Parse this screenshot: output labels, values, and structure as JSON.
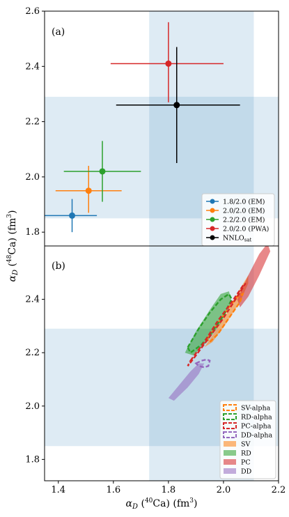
{
  "chart_data": [
    {
      "type": "scatter",
      "panel_label": "(a)",
      "xlim": [
        1.35,
        2.2
      ],
      "ylim": [
        1.75,
        2.6
      ],
      "yticks": [
        "1.8",
        "2.0",
        "2.2",
        "2.4",
        "2.6"
      ],
      "exp_band_x": [
        1.73,
        2.11
      ],
      "exp_band_y": [
        1.85,
        2.29
      ],
      "legend_position": "lower-right",
      "series": [
        {
          "name": "1.8/2.0 (EM)",
          "color": "#1f77b4",
          "x": 1.45,
          "y": 1.86,
          "xerr": [
            1.35,
            1.54
          ],
          "yerr": [
            1.8,
            1.92
          ]
        },
        {
          "name": "2.0/2.0 (EM)",
          "color": "#ff7f0e",
          "x": 1.51,
          "y": 1.95,
          "xerr": [
            1.39,
            1.63
          ],
          "yerr": [
            1.87,
            2.04
          ]
        },
        {
          "name": "2.2/2.0 (EM)",
          "color": "#2ca02c",
          "x": 1.56,
          "y": 2.02,
          "xerr": [
            1.42,
            1.7
          ],
          "yerr": [
            1.91,
            2.13
          ]
        },
        {
          "name": "2.0/2.0 (PWA)",
          "color": "#d62728",
          "x": 1.8,
          "y": 2.41,
          "xerr": [
            1.59,
            2.0
          ],
          "yerr": [
            2.27,
            2.56
          ]
        },
        {
          "name_prefix": "NNLO",
          "name_sub": "sat",
          "color": "#000000",
          "x": 1.83,
          "y": 2.26,
          "xerr": [
            1.61,
            2.06
          ],
          "yerr": [
            2.05,
            2.47
          ]
        }
      ]
    },
    {
      "type": "ellipse-region",
      "panel_label": "(b)",
      "xlim": [
        1.35,
        2.2
      ],
      "ylim": [
        1.72,
        2.6
      ],
      "xticks": [
        "1.4",
        "1.6",
        "1.8",
        "2.0",
        "2.2"
      ],
      "yticks": [
        "1.8",
        "2.0",
        "2.2",
        "2.4"
      ],
      "exp_band_x": [
        1.73,
        2.11
      ],
      "exp_band_y": [
        1.85,
        2.29
      ],
      "legend_position": "lower-right",
      "dashed": [
        {
          "name": "SV-alpha",
          "color": "#ff7f0e",
          "points": [
            [
              1.94,
              2.25
            ],
            [
              1.98,
              2.31
            ],
            [
              2.02,
              2.37
            ],
            [
              2.05,
              2.41
            ],
            [
              2.07,
              2.42
            ],
            [
              2.06,
              2.39
            ],
            [
              2.02,
              2.33
            ],
            [
              1.98,
              2.27
            ],
            [
              1.95,
              2.24
            ],
            [
              1.94,
              2.25
            ]
          ]
        },
        {
          "name": "RD-alpha",
          "color": "#2ca02c",
          "points": [
            [
              1.87,
              2.22
            ],
            [
              1.91,
              2.29
            ],
            [
              1.95,
              2.35
            ],
            [
              1.99,
              2.4
            ],
            [
              2.02,
              2.42
            ],
            [
              2.03,
              2.4
            ],
            [
              2.0,
              2.34
            ],
            [
              1.96,
              2.28
            ],
            [
              1.92,
              2.23
            ],
            [
              1.88,
              2.2
            ],
            [
              1.87,
              2.22
            ]
          ]
        },
        {
          "name": "PC-alpha",
          "color": "#d62728",
          "points": [
            [
              1.88,
              2.17
            ],
            [
              1.93,
              2.24
            ],
            [
              1.98,
              2.32
            ],
            [
              2.03,
              2.39
            ],
            [
              2.07,
              2.45
            ],
            [
              2.08,
              2.46
            ],
            [
              2.05,
              2.41
            ],
            [
              2.0,
              2.33
            ],
            [
              1.95,
              2.26
            ],
            [
              1.9,
              2.19
            ],
            [
              1.87,
              2.15
            ],
            [
              1.88,
              2.17
            ]
          ]
        },
        {
          "name": "DD-alpha",
          "color": "#9467bd",
          "points": [
            [
              1.9,
              2.16
            ],
            [
              1.92,
              2.17
            ],
            [
              1.94,
              2.175
            ],
            [
              1.95,
              2.17
            ],
            [
              1.945,
              2.15
            ],
            [
              1.93,
              2.145
            ],
            [
              1.91,
              2.15
            ],
            [
              1.9,
              2.16
            ]
          ]
        }
      ],
      "filled": [
        {
          "name": "SV",
          "color": "#ff7f0e",
          "points": [
            [
              1.93,
              2.22
            ],
            [
              1.97,
              2.28
            ],
            [
              2.02,
              2.36
            ],
            [
              2.06,
              2.44
            ],
            [
              2.09,
              2.49
            ],
            [
              2.09,
              2.46
            ],
            [
              2.06,
              2.39
            ],
            [
              2.01,
              2.31
            ],
            [
              1.96,
              2.24
            ],
            [
              1.93,
              2.22
            ]
          ]
        },
        {
          "name": "RD",
          "color": "#2ca02c",
          "points": [
            [
              1.86,
              2.2
            ],
            [
              1.9,
              2.28
            ],
            [
              1.95,
              2.36
            ],
            [
              1.99,
              2.42
            ],
            [
              2.02,
              2.43
            ],
            [
              2.03,
              2.39
            ],
            [
              1.99,
              2.31
            ],
            [
              1.94,
              2.24
            ],
            [
              1.89,
              2.19
            ],
            [
              1.86,
              2.2
            ]
          ]
        },
        {
          "name": "PC",
          "color": "#d62728",
          "points": [
            [
              2.05,
              2.4
            ],
            [
              2.09,
              2.49
            ],
            [
              2.13,
              2.57
            ],
            [
              2.16,
              2.61
            ],
            [
              2.17,
              2.58
            ],
            [
              2.13,
              2.49
            ],
            [
              2.09,
              2.41
            ],
            [
              2.06,
              2.37
            ],
            [
              2.05,
              2.4
            ]
          ]
        },
        {
          "name": "DD",
          "color": "#9467bd",
          "points": [
            [
              1.8,
              2.03
            ],
            [
              1.84,
              2.08
            ],
            [
              1.88,
              2.13
            ],
            [
              1.91,
              2.16
            ],
            [
              1.93,
              2.16
            ],
            [
              1.91,
              2.12
            ],
            [
              1.87,
              2.07
            ],
            [
              1.82,
              2.02
            ],
            [
              1.8,
              2.03
            ]
          ]
        }
      ]
    }
  ],
  "axes": {
    "xlabel_prefix": "α",
    "xlabel_sub": "D",
    "xlabel_paren_open": " (",
    "xlabel_sup": "40",
    "xlabel_tail": "Ca) (fm",
    "xlabel_sup2": "3",
    "xlabel_close": ")",
    "ylabel_prefix": "α",
    "ylabel_sub": "D",
    "ylabel_paren_open": " (",
    "ylabel_sup": "48",
    "ylabel_tail": "Ca) (fm",
    "ylabel_sup2": "3",
    "ylabel_close": ")"
  },
  "colors": {
    "band": "#1f77b4",
    "band_opacity": "0.15"
  }
}
